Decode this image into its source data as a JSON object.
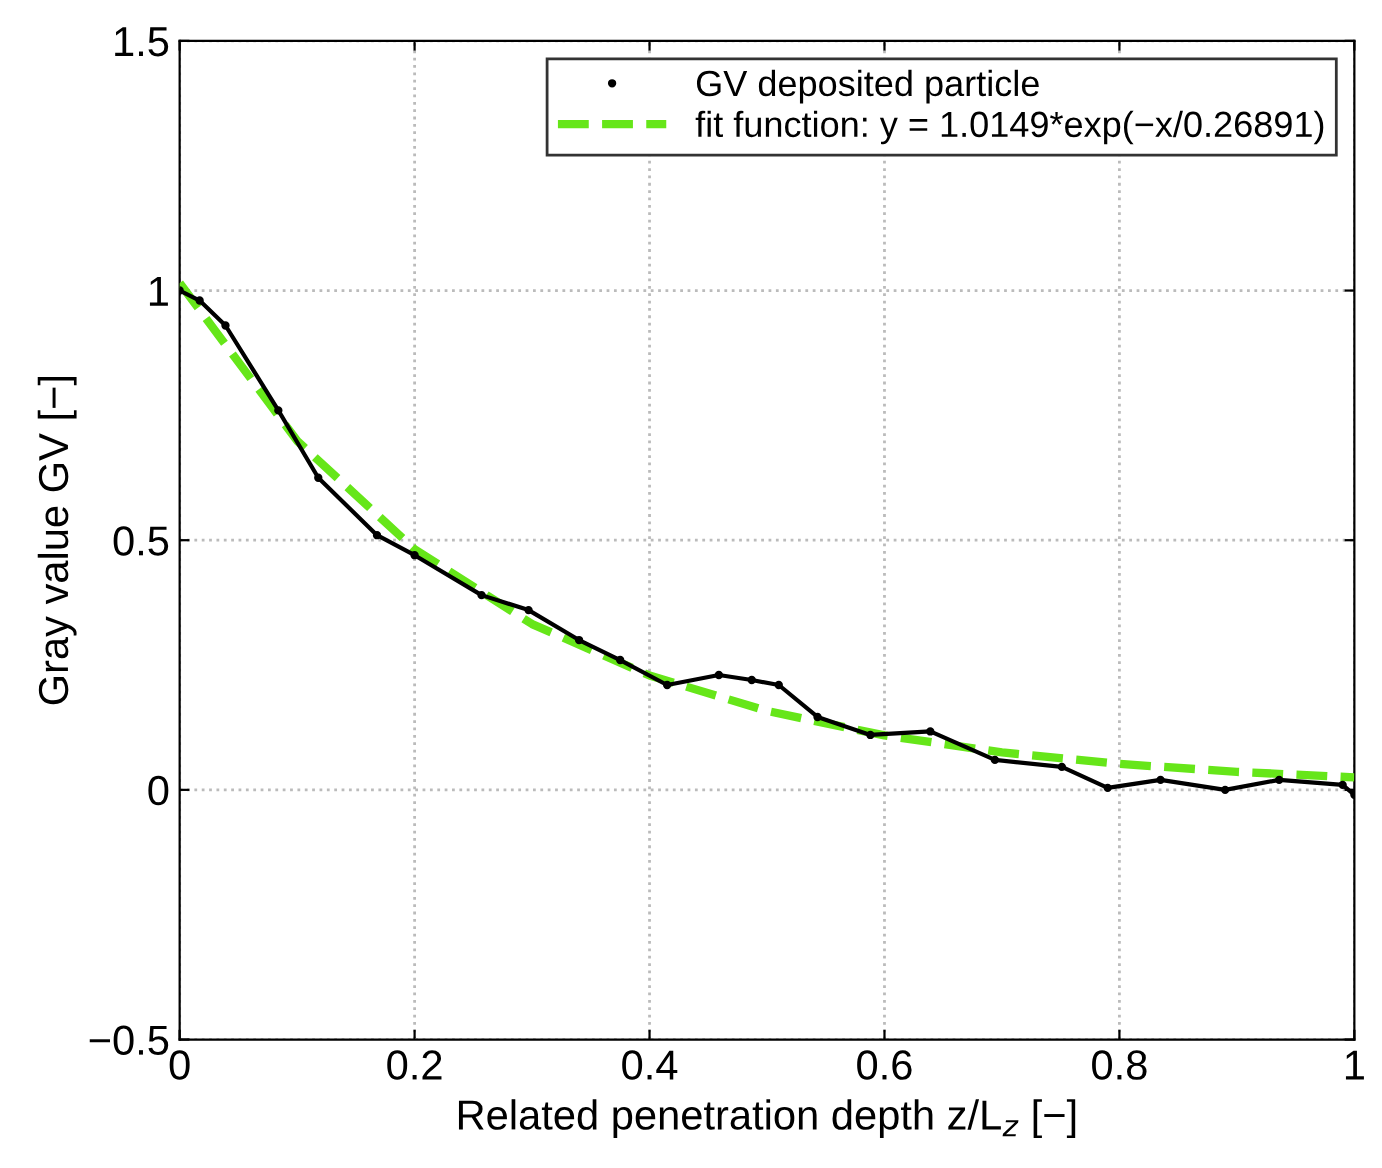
{
  "chart_data": {
    "type": "line",
    "xlabel": "Related penetration depth z/L$_{z}$ [−]",
    "ylabel": "Gray value GV [−]",
    "xlim": [
      0,
      1
    ],
    "ylim": [
      -0.5,
      1.5
    ],
    "xticks": [
      0,
      0.2,
      0.4,
      0.6,
      0.8,
      1
    ],
    "yticks": [
      -0.5,
      0,
      0.5,
      1,
      1.5
    ],
    "grid": true,
    "legend": "top right",
    "series": [
      {
        "name": "GV deposited particle",
        "color": "#000000",
        "marker": "circle",
        "line_style": "solid",
        "x": [
          0,
          0.017,
          0.039,
          0.084,
          0.118,
          0.168,
          0.2,
          0.257,
          0.297,
          0.34,
          0.375,
          0.415,
          0.459,
          0.487,
          0.51,
          0.543,
          0.588,
          0.639,
          0.694,
          0.751,
          0.79,
          0.835,
          0.89,
          0.936,
          0.99,
          1.0
        ],
        "values": [
          1.0,
          0.98,
          0.93,
          0.76,
          0.625,
          0.51,
          0.47,
          0.39,
          0.36,
          0.3,
          0.26,
          0.21,
          0.23,
          0.22,
          0.21,
          0.146,
          0.11,
          0.117,
          0.06,
          0.046,
          0.004,
          0.02,
          0.0,
          0.02,
          0.01,
          -0.01
        ]
      },
      {
        "name": "fit function: y = 1.0149*exp(−x/0.26891)",
        "color": "#66e619",
        "marker": "none",
        "line_style": "dashed",
        "x": [
          0,
          0.1,
          0.2,
          0.3,
          0.4,
          0.5,
          0.6,
          0.7,
          0.8,
          0.9,
          1.0
        ],
        "values": [
          1.015,
          0.699,
          0.482,
          0.332,
          0.229,
          0.158,
          0.109,
          0.075,
          0.052,
          0.036,
          0.025
        ]
      }
    ]
  }
}
